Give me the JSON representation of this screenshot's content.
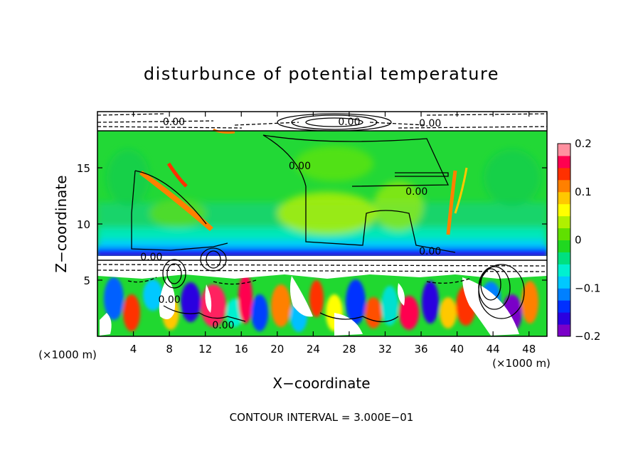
{
  "chart_data": {
    "type": "heatmap",
    "title": "disturbunce of potential temperature",
    "xlabel": "X−coordinate",
    "ylabel": "Z−coordinate",
    "x_unit_left": "(×1000 m)",
    "x_unit_right": "(×1000 m)",
    "footer": "CONTOUR INTERVAL = 3.000E−01",
    "xlim": [
      0,
      50
    ],
    "ylim": [
      0,
      20
    ],
    "x_ticks": [
      4,
      8,
      12,
      16,
      20,
      24,
      28,
      32,
      36,
      40,
      44,
      48
    ],
    "x_tick_labels": [
      "4",
      "8",
      "12",
      "16",
      "20",
      "24",
      "28",
      "32",
      "36",
      "40",
      "44",
      "48"
    ],
    "y_ticks": [
      5,
      10,
      15
    ],
    "y_tick_labels": [
      "5",
      "10",
      "15"
    ],
    "colorbar": {
      "range": [
        -0.2,
        0.2
      ],
      "ticks": [
        -0.2,
        -0.1,
        0,
        0.1,
        0.2
      ],
      "tick_labels": [
        "−0.2",
        "−0.1",
        "0",
        "0.1",
        "0.2"
      ],
      "colors": [
        "#7a00c8",
        "#2a00e0",
        "#0030ff",
        "#0080ff",
        "#00c8ff",
        "#00f0d0",
        "#00e080",
        "#20d820",
        "#60e000",
        "#b0f000",
        "#ffff00",
        "#ffc800",
        "#ff8000",
        "#ff3000",
        "#ff0050",
        "#ff90a0"
      ]
    },
    "contour_labels": [
      {
        "text": "0.00",
        "x": 8.5,
        "y": 19.1
      },
      {
        "text": "0.00",
        "x": 28.0,
        "y": 19.1
      },
      {
        "text": "0.00",
        "x": 37.0,
        "y": 19.0
      },
      {
        "text": "0.00",
        "x": 22.5,
        "y": 15.2
      },
      {
        "text": "0.00",
        "x": 35.5,
        "y": 12.9
      },
      {
        "text": "0.00",
        "x": 37.0,
        "y": 7.6
      },
      {
        "text": "0.00",
        "x": 6.0,
        "y": 7.1
      },
      {
        "text": "0.00",
        "x": 8.0,
        "y": 3.3
      },
      {
        "text": "0.00",
        "x": 14.0,
        "y": 1.0
      }
    ]
  }
}
